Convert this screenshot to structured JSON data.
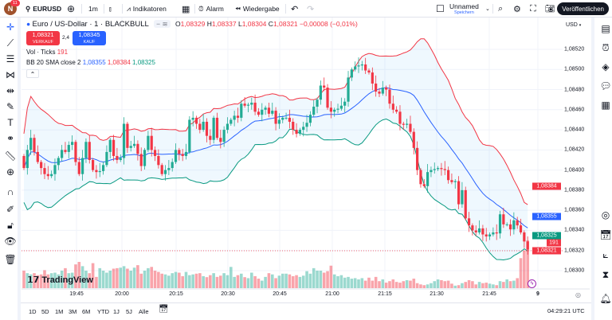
{
  "topbar": {
    "avatar": "N",
    "notifications": "11",
    "symbol": "EURUSD",
    "interval": "1m",
    "indicators": "Indikatoren",
    "alarm": "Alarm",
    "replay": "Wiedergabe",
    "layout_name": "Unnamed",
    "save": "Speichern",
    "publish": "Veröffentlichen"
  },
  "legend": {
    "title": "Euro / US-Dollar · 1 · BLACKBULL",
    "o_label": "O",
    "o": "1,08329",
    "h_label": "H",
    "h": "1,08337",
    "l_label": "L",
    "l": "1,08304",
    "c_label": "C",
    "c": "1,08321",
    "change": "−0,00008 (−0,01%)",
    "sell_price": "1,08321",
    "sell_label": "VERKAUF",
    "spread": "2,4",
    "buy_price": "1,08345",
    "buy_label": "KAUF",
    "vol_label": "Vol · Ticks",
    "vol_value": "191",
    "bb_label": "BB 20 SMA close 2",
    "bb_basis": "1,08355",
    "bb_upper": "1,08384",
    "bb_lower": "1,08325"
  },
  "currency": "USD",
  "colors": {
    "up": "#22ab94",
    "down": "#f23645",
    "basis": "#2962ff",
    "upper": "#f23645",
    "lower": "#089981",
    "band_fill": "#2196f3"
  },
  "chart_data": {
    "type": "candlestick",
    "interval": "1m",
    "ylim": [
      1.0829,
      1.0853
    ],
    "price_ticks": [
      "1,08520",
      "1,08500",
      "1,08480",
      "1,08460",
      "1,08440",
      "1,08420",
      "1,08400",
      "1,08380",
      "1,08360",
      "1,08340",
      "1,08320",
      "1,08300"
    ],
    "time_ticks": [
      "19:45",
      "20:00",
      "20:15",
      "20:30",
      "20:45",
      "21:00",
      "21:15",
      "21:30",
      "21:45",
      "9"
    ],
    "price_tags": {
      "bb_upper": "1,08384",
      "bb_basis": "1,08355",
      "bb_lower": "1,08325",
      "volume": "191",
      "last": "1,08321"
    },
    "closes": [
      1.08402,
      1.0842,
      1.08432,
      1.08418,
      1.08408,
      1.08402,
      1.08396,
      1.08394,
      1.08396,
      1.08405,
      1.08412,
      1.0842,
      1.08418,
      1.08425,
      1.08428,
      1.08408,
      1.08396,
      1.08412,
      1.08428,
      1.0841,
      1.084,
      1.08398,
      1.08399,
      1.08405,
      1.08418,
      1.0843,
      1.08414,
      1.0841,
      1.08412,
      1.08446,
      1.08422,
      1.08424,
      1.08426,
      1.08416,
      1.08404,
      1.0842,
      1.08434,
      1.0842,
      1.08414,
      1.08405,
      1.08396,
      1.084,
      1.08402,
      1.08408,
      1.0842,
      1.08416,
      1.08414,
      1.08418,
      1.0845,
      1.08452,
      1.08446,
      1.0844,
      1.08448,
      1.08434,
      1.0843,
      1.08452,
      1.08432,
      1.08428,
      1.0844,
      1.08446,
      1.0845,
      1.08454,
      1.08452,
      1.08466,
      1.08464,
      1.08465,
      1.08467,
      1.08458,
      1.08455,
      1.0846,
      1.08462,
      1.08456,
      1.08459,
      1.08446,
      1.0845,
      1.08452,
      1.08452,
      1.08448,
      1.0844,
      1.08436,
      1.0844,
      1.08443,
      1.08447,
      1.08455,
      1.08463,
      1.0847,
      1.08484,
      1.08482,
      1.08462,
      1.08458,
      1.0846,
      1.08461,
      1.08464,
      1.08468,
      1.08492,
      1.085,
      1.08503,
      1.08504,
      1.08505,
      1.08499,
      1.08497,
      1.08486,
      1.08478,
      1.08476,
      1.08482,
      1.0848,
      1.08466,
      1.0846,
      1.08458,
      1.08446,
      1.08445,
      1.08446,
      1.08438,
      1.08422,
      1.084,
      1.08386,
      1.08384,
      1.08398,
      1.084,
      1.08401,
      1.08402,
      1.08401,
      1.084,
      1.0839,
      1.08388,
      1.08389,
      1.08366,
      1.0838,
      1.08352,
      1.08345,
      1.0834,
      1.08338,
      1.08342,
      1.08336,
      1.08334,
      1.08336,
      1.08338,
      1.08337,
      1.08356,
      1.08346,
      1.08346,
      1.08341,
      1.0835,
      1.08345,
      1.08338,
      1.08329,
      1.08321
    ],
    "volumes": [
      70,
      60,
      55,
      60,
      52,
      55,
      72,
      55,
      60,
      62,
      55,
      70,
      80,
      60,
      62,
      95,
      105,
      88,
      70,
      60,
      100,
      45,
      80,
      70,
      62,
      70,
      78,
      80,
      82,
      88,
      78,
      70,
      82,
      92,
      58,
      70,
      80,
      85,
      70,
      65,
      58,
      55,
      50,
      60,
      65,
      62,
      48,
      65,
      52,
      55,
      58,
      60,
      48,
      44,
      52,
      60,
      45,
      50,
      60,
      52,
      85,
      45,
      52,
      58,
      44,
      40,
      62,
      48,
      38,
      30,
      45,
      60,
      55,
      40,
      50,
      58,
      58,
      55,
      48,
      52,
      45,
      50,
      68,
      58,
      80,
      70,
      70,
      62,
      68,
      90,
      55,
      48,
      52,
      42,
      45,
      38,
      40,
      35,
      40,
      30,
      42,
      30,
      45,
      28,
      35,
      22,
      28,
      35,
      25,
      22,
      28,
      32,
      30,
      38,
      20,
      15,
      12,
      15,
      20,
      28,
      35,
      32,
      28,
      30,
      18,
      10,
      12,
      20,
      25,
      32,
      28,
      15,
      25,
      20,
      22,
      18,
      15,
      12,
      28,
      25,
      35,
      28,
      30,
      40,
      120,
      150,
      191
    ],
    "indicator": {
      "name": "BB",
      "length": 20,
      "source": "close",
      "stddev": 2
    }
  },
  "watermark": "TradingView",
  "bottombar": {
    "ranges": [
      "1D",
      "5D",
      "1M",
      "3M",
      "6M",
      "YTD",
      "1J",
      "5J",
      "Alle"
    ],
    "clock": "04:29:21 UTC"
  }
}
